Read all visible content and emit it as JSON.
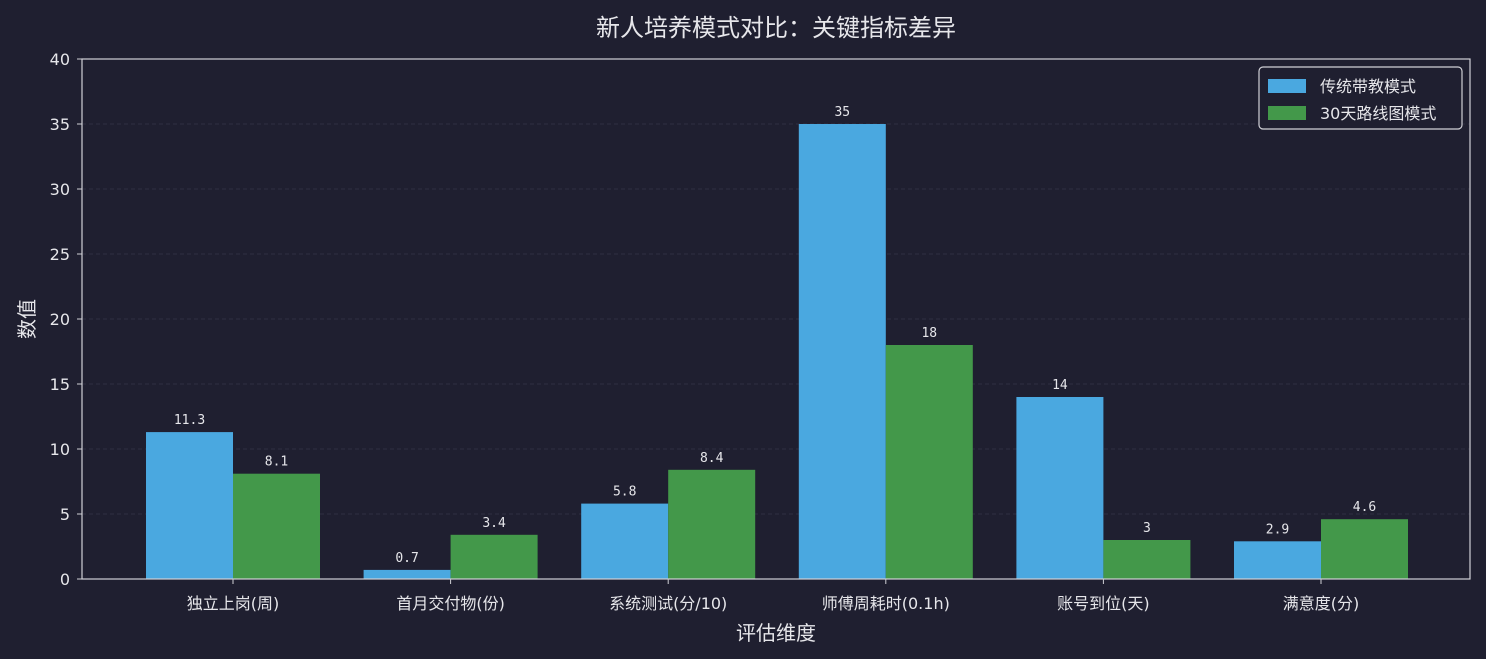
{
  "chart_data": {
    "type": "bar",
    "title": "新人培养模式对比：关键指标差异",
    "xlabel": "评估维度",
    "ylabel": "数值",
    "ylim": [
      0,
      40
    ],
    "yticks": [
      0,
      5,
      10,
      15,
      20,
      25,
      30,
      35,
      40
    ],
    "grid": true,
    "legend_position": "top-right",
    "categories": [
      "独立上岗(周)",
      "首月交付物(份)",
      "系统测试(分/10)",
      "师傅周耗时(0.1h)",
      "账号到位(天)",
      "满意度(分)"
    ],
    "series": [
      {
        "name": "传统带教模式",
        "color": "#4aa8e0",
        "values": [
          11.3,
          0.7,
          5.8,
          35,
          14,
          2.9
        ]
      },
      {
        "name": "30天路线图模式",
        "color": "#43984a",
        "values": [
          8.1,
          3.4,
          8.4,
          18,
          3,
          4.6
        ]
      }
    ]
  }
}
